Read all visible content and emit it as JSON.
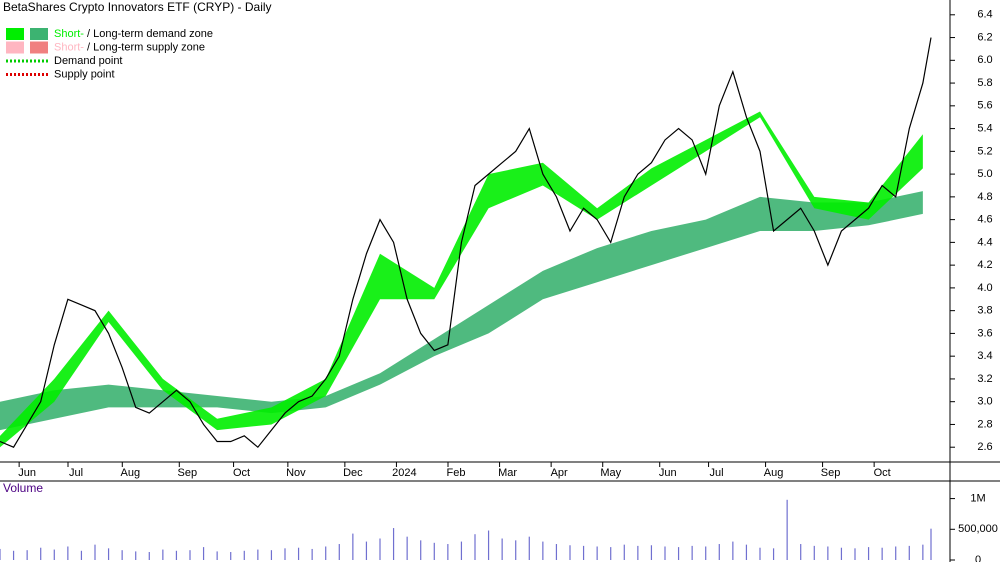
{
  "chart_data": [
    {
      "type": "line",
      "title": "BetaShares Crypto Innovators ETF (CRYP) - Daily",
      "legend": [
        {
          "short": "Short-",
          "sep": " / ",
          "long": "Long-term demand zone",
          "short_color": "#00ee00",
          "long_color": "#3cb371"
        },
        {
          "short": "Short-",
          "sep": " / ",
          "long": "Long-term supply zone",
          "short_color": "#ffb6c1",
          "long_color": "#f08080"
        },
        {
          "label": "Demand point",
          "color": "#00cc00"
        },
        {
          "label": "Supply point",
          "color": "#dd0000"
        }
      ],
      "xlim": [
        0,
        350
      ],
      "xticks": [
        {
          "value": 10,
          "label": "Jun"
        },
        {
          "value": 28,
          "label": "Jul"
        },
        {
          "value": 48,
          "label": "Aug"
        },
        {
          "value": 69,
          "label": "Sep"
        },
        {
          "value": 89,
          "label": "Oct"
        },
        {
          "value": 109,
          "label": "Nov"
        },
        {
          "value": 130,
          "label": "Dec"
        },
        {
          "value": 149,
          "label": "2024"
        },
        {
          "value": 168,
          "label": "Feb"
        },
        {
          "value": 187,
          "label": "Mar"
        },
        {
          "value": 206,
          "label": "Apr"
        },
        {
          "value": 225,
          "label": "May"
        },
        {
          "value": 246,
          "label": "Jun"
        },
        {
          "value": 264,
          "label": "Jul"
        },
        {
          "value": 285,
          "label": "Aug"
        },
        {
          "value": 306,
          "label": "Sep"
        },
        {
          "value": 325,
          "label": "Oct"
        }
      ],
      "ylim": [
        2.47,
        6.53
      ],
      "yticks": [
        2.6,
        2.8,
        {
          "value": 3.0,
          "label": "3.0"
        },
        3.2,
        3.4,
        3.6,
        3.8,
        {
          "value": 4.0,
          "label": "4.0"
        },
        4.2,
        4.4,
        4.6,
        4.8,
        {
          "value": 5.0,
          "label": "5.0"
        },
        5.2,
        5.4,
        5.6,
        5.8,
        {
          "value": 6.0,
          "label": "6.0"
        },
        6.2,
        6.4
      ],
      "x": [
        0,
        5,
        10,
        15,
        20,
        25,
        30,
        35,
        40,
        45,
        50,
        55,
        60,
        65,
        70,
        75,
        80,
        85,
        90,
        95,
        100,
        105,
        110,
        115,
        120,
        125,
        130,
        135,
        140,
        145,
        150,
        155,
        160,
        165,
        170,
        175,
        180,
        185,
        190,
        195,
        200,
        205,
        210,
        215,
        220,
        225,
        230,
        235,
        240,
        245,
        250,
        255,
        260,
        265,
        270,
        275,
        280,
        285,
        290,
        295,
        300,
        305,
        310,
        315,
        320,
        325,
        330,
        335,
        340,
        343
      ],
      "series": [
        {
          "color": "#000000",
          "values": [
            2.65,
            2.6,
            2.8,
            3.0,
            3.5,
            3.9,
            3.85,
            3.8,
            3.6,
            3.3,
            2.95,
            2.9,
            3.0,
            3.1,
            3.0,
            2.8,
            2.65,
            2.65,
            2.7,
            2.6,
            2.75,
            2.9,
            3.0,
            3.05,
            3.2,
            3.4,
            3.9,
            4.3,
            4.6,
            4.4,
            3.9,
            3.6,
            3.45,
            3.5,
            4.4,
            4.9,
            5.0,
            5.1,
            5.2,
            5.4,
            5.0,
            4.8,
            4.5,
            4.7,
            4.6,
            4.4,
            4.8,
            5.0,
            5.1,
            5.3,
            5.4,
            5.3,
            5.0,
            5.6,
            5.9,
            5.5,
            5.2,
            4.5,
            4.6,
            4.7,
            4.5,
            4.2,
            4.5,
            4.6,
            4.7,
            4.9,
            4.8,
            5.4,
            5.8,
            6.2
          ]
        }
      ],
      "zone_x": [
        0,
        20,
        40,
        60,
        80,
        100,
        120,
        140,
        160,
        180,
        200,
        220,
        240,
        260,
        280,
        300,
        320,
        340
      ],
      "zones": [
        {
          "color": "#3cb371",
          "lower": [
            2.75,
            2.85,
            2.95,
            2.95,
            2.95,
            2.9,
            2.95,
            3.15,
            3.4,
            3.6,
            3.9,
            4.05,
            4.2,
            4.35,
            4.5,
            4.5,
            4.55,
            4.65
          ],
          "upper": [
            3.0,
            3.1,
            3.15,
            3.1,
            3.05,
            3.0,
            3.05,
            3.25,
            3.55,
            3.85,
            4.15,
            4.35,
            4.5,
            4.6,
            4.8,
            4.75,
            4.75,
            4.85
          ]
        },
        {
          "color": "#00ee00",
          "lower": [
            2.6,
            3.0,
            3.7,
            3.1,
            2.75,
            2.8,
            3.05,
            3.9,
            3.9,
            4.7,
            4.9,
            4.6,
            4.9,
            5.2,
            5.5,
            4.7,
            4.6,
            5.05
          ],
          "upper": [
            2.7,
            3.2,
            3.8,
            3.2,
            2.85,
            2.95,
            3.2,
            4.3,
            4.0,
            5.0,
            5.1,
            4.7,
            5.05,
            5.3,
            5.55,
            4.8,
            4.75,
            5.35
          ]
        }
      ]
    },
    {
      "type": "bar",
      "title": "Volume",
      "color": "#7070d0",
      "xlim": [
        0,
        350
      ],
      "x": [
        0,
        5,
        10,
        15,
        20,
        25,
        30,
        35,
        40,
        45,
        50,
        55,
        60,
        65,
        70,
        75,
        80,
        85,
        90,
        95,
        100,
        105,
        110,
        115,
        120,
        125,
        130,
        135,
        140,
        145,
        150,
        155,
        160,
        165,
        170,
        175,
        180,
        185,
        190,
        195,
        200,
        205,
        210,
        215,
        220,
        225,
        230,
        235,
        240,
        245,
        250,
        255,
        260,
        265,
        270,
        275,
        280,
        285,
        290,
        295,
        300,
        305,
        310,
        315,
        320,
        325,
        330,
        335,
        340,
        343
      ],
      "values": [
        180000,
        150000,
        160000,
        200000,
        170000,
        220000,
        150000,
        250000,
        190000,
        160000,
        140000,
        130000,
        170000,
        150000,
        160000,
        210000,
        140000,
        130000,
        150000,
        170000,
        160000,
        190000,
        200000,
        180000,
        220000,
        260000,
        430000,
        300000,
        350000,
        520000,
        380000,
        320000,
        280000,
        260000,
        300000,
        420000,
        480000,
        350000,
        320000,
        380000,
        300000,
        260000,
        240000,
        230000,
        220000,
        210000,
        250000,
        230000,
        240000,
        220000,
        210000,
        230000,
        220000,
        260000,
        300000,
        250000,
        200000,
        190000,
        980000,
        260000,
        230000,
        220000,
        200000,
        190000,
        210000,
        200000,
        220000,
        230000,
        250000,
        510000
      ],
      "ylim": [
        0,
        1270000
      ],
      "yticks": [
        0,
        {
          "value": 500000,
          "label": "500,000"
        },
        {
          "value": 1000000,
          "label": "1M"
        }
      ]
    }
  ]
}
